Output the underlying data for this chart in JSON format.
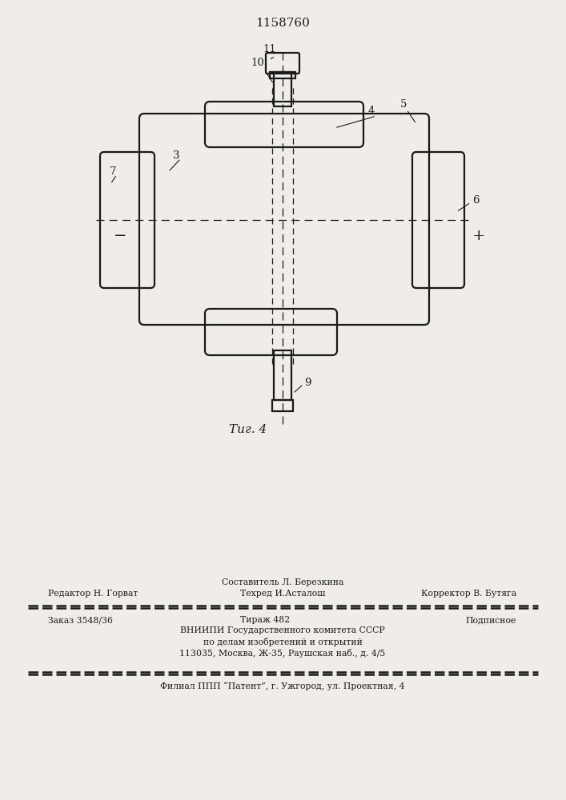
{
  "title": "1158760",
  "fig_label": "Τиг. 4",
  "background_color": "#f0ede8",
  "line_color": "#1a1a1a",
  "footer": {
    "line1_center": "Составитель Л. Березкина",
    "line2_left": "Редактор Н. Горват",
    "line2_center": "Техред И.Асталош",
    "line2_right": "Корректор В. Бутяга",
    "line3_left": "Заказ 3548/36",
    "line3_center": "Тираж 482",
    "line3_right": "Подписное",
    "line4": "ВНИИПИ Государственного комитета СССР",
    "line5": "по делам изобретений и открытий",
    "line6": "113035, Москва, Ж-35, Раушская наб., д. 4/5",
    "line7": "Филиал ППП “Патент”, г. Ужгород, ул. Проектная, 4"
  }
}
